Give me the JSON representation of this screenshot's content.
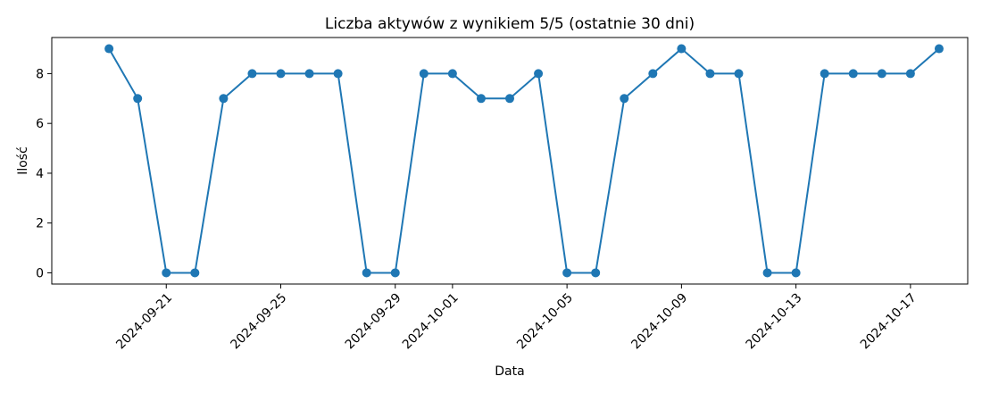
{
  "chart_data": {
    "type": "line",
    "title": "Liczba aktywów z wynikiem 5/5 (ostatnie 30 dni)",
    "xlabel": "Data",
    "ylabel": "Ilość",
    "x": [
      "2024-09-19",
      "2024-09-20",
      "2024-09-21",
      "2024-09-22",
      "2024-09-23",
      "2024-09-24",
      "2024-09-25",
      "2024-09-26",
      "2024-09-27",
      "2024-09-28",
      "2024-09-29",
      "2024-09-30",
      "2024-10-01",
      "2024-10-02",
      "2024-10-03",
      "2024-10-04",
      "2024-10-05",
      "2024-10-06",
      "2024-10-07",
      "2024-10-08",
      "2024-10-09",
      "2024-10-10",
      "2024-10-11",
      "2024-10-12",
      "2024-10-13",
      "2024-10-14",
      "2024-10-15",
      "2024-10-16",
      "2024-10-17",
      "2024-10-18"
    ],
    "series": [
      {
        "color": "#1f77b4",
        "values": [
          9,
          7,
          0,
          0,
          7,
          8,
          8,
          8,
          8,
          0,
          0,
          8,
          8,
          7,
          7,
          8,
          0,
          0,
          7,
          8,
          9,
          8,
          8,
          0,
          0,
          8,
          8,
          8,
          8,
          9
        ]
      }
    ],
    "x_ticks": [
      "2024-09-21",
      "2024-09-25",
      "2024-09-29",
      "2024-10-01",
      "2024-10-05",
      "2024-10-09",
      "2024-10-13",
      "2024-10-17"
    ],
    "y_ticks": [
      0,
      2,
      4,
      6,
      8
    ],
    "xlim": [
      "2024-09-17",
      "2024-10-19"
    ],
    "ylim": [
      -0.45,
      9.45
    ],
    "grid": false,
    "marker": "circle"
  }
}
